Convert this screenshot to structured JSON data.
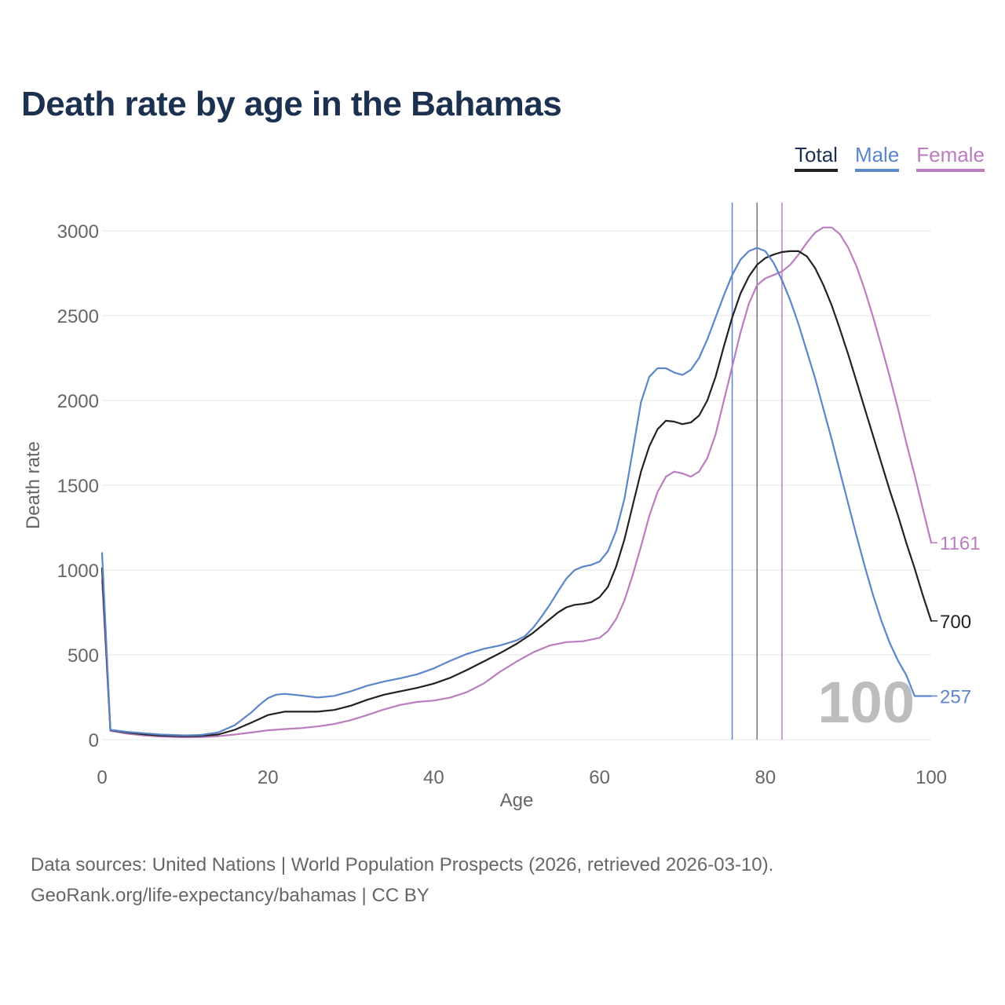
{
  "title": "Death rate by age in the Bahamas",
  "legend": [
    {
      "label": "Total",
      "color": "#222222"
    },
    {
      "label": "Male",
      "color": "#5b86c9"
    },
    {
      "label": "Female",
      "color": "#bb7dbf"
    }
  ],
  "footer": {
    "source": "Data sources: United Nations | World Population Prospects (2026, retrieved 2026-03-10).",
    "link": "GeoRank.org/life-expectancy/bahamas | CC BY"
  },
  "chart_data": {
    "type": "line",
    "xlabel": "Age",
    "ylabel": "Death rate",
    "xlim": [
      0,
      100
    ],
    "ylim": [
      0,
      3000
    ],
    "xticks": [
      "0",
      "20",
      "40",
      "60",
      "80",
      "100"
    ],
    "yticks": [
      "0",
      "500",
      "1000",
      "1500",
      "2000",
      "2500",
      "3000"
    ],
    "watermark": "100",
    "life_expectancy_lines": [
      {
        "series": "Male",
        "age": 76,
        "color": "#5b86c9"
      },
      {
        "series": "Total",
        "age": 79,
        "color": "#777777"
      },
      {
        "series": "Female",
        "age": 82,
        "color": "#bb7dbf"
      }
    ],
    "end_labels": [
      {
        "series": "Female",
        "value": "1161",
        "color": "#bb7dbf"
      },
      {
        "series": "Total",
        "value": "700",
        "color": "#222222"
      },
      {
        "series": "Male",
        "value": "257",
        "color": "#5b86c9"
      }
    ],
    "series": [
      {
        "name": "Female",
        "color": "#bb7dbf",
        "points": [
          [
            0,
            940
          ],
          [
            1,
            52
          ],
          [
            3,
            35
          ],
          [
            5,
            25
          ],
          [
            7,
            18
          ],
          [
            10,
            14
          ],
          [
            12,
            15
          ],
          [
            14,
            20
          ],
          [
            16,
            30
          ],
          [
            18,
            42
          ],
          [
            20,
            55
          ],
          [
            22,
            62
          ],
          [
            24,
            68
          ],
          [
            26,
            78
          ],
          [
            28,
            92
          ],
          [
            30,
            115
          ],
          [
            32,
            145
          ],
          [
            34,
            178
          ],
          [
            36,
            205
          ],
          [
            38,
            222
          ],
          [
            40,
            230
          ],
          [
            42,
            248
          ],
          [
            44,
            280
          ],
          [
            46,
            330
          ],
          [
            48,
            400
          ],
          [
            50,
            460
          ],
          [
            52,
            515
          ],
          [
            54,
            555
          ],
          [
            56,
            575
          ],
          [
            58,
            580
          ],
          [
            60,
            600
          ],
          [
            61,
            640
          ],
          [
            62,
            710
          ],
          [
            63,
            820
          ],
          [
            64,
            970
          ],
          [
            65,
            1140
          ],
          [
            66,
            1320
          ],
          [
            67,
            1460
          ],
          [
            68,
            1550
          ],
          [
            69,
            1580
          ],
          [
            70,
            1570
          ],
          [
            71,
            1550
          ],
          [
            72,
            1580
          ],
          [
            73,
            1660
          ],
          [
            74,
            1800
          ],
          [
            75,
            2000
          ],
          [
            76,
            2200
          ],
          [
            77,
            2400
          ],
          [
            78,
            2570
          ],
          [
            79,
            2680
          ],
          [
            80,
            2720
          ],
          [
            81,
            2740
          ],
          [
            82,
            2760
          ],
          [
            83,
            2800
          ],
          [
            84,
            2860
          ],
          [
            85,
            2930
          ],
          [
            86,
            2990
          ],
          [
            87,
            3020
          ],
          [
            88,
            3020
          ],
          [
            89,
            2980
          ],
          [
            90,
            2900
          ],
          [
            91,
            2790
          ],
          [
            92,
            2650
          ],
          [
            93,
            2490
          ],
          [
            94,
            2320
          ],
          [
            95,
            2140
          ],
          [
            96,
            1950
          ],
          [
            97,
            1750
          ],
          [
            98,
            1560
          ],
          [
            99,
            1360
          ],
          [
            100,
            1161
          ]
        ]
      },
      {
        "name": "Total",
        "color": "#222222",
        "points": [
          [
            0,
            1010
          ],
          [
            1,
            56
          ],
          [
            3,
            42
          ],
          [
            5,
            32
          ],
          [
            7,
            24
          ],
          [
            10,
            20
          ],
          [
            12,
            22
          ],
          [
            14,
            30
          ],
          [
            16,
            58
          ],
          [
            18,
            100
          ],
          [
            19,
            122
          ],
          [
            20,
            145
          ],
          [
            22,
            165
          ],
          [
            24,
            165
          ],
          [
            26,
            165
          ],
          [
            28,
            175
          ],
          [
            30,
            200
          ],
          [
            32,
            235
          ],
          [
            34,
            265
          ],
          [
            36,
            285
          ],
          [
            38,
            305
          ],
          [
            40,
            330
          ],
          [
            42,
            365
          ],
          [
            44,
            410
          ],
          [
            46,
            460
          ],
          [
            48,
            510
          ],
          [
            50,
            565
          ],
          [
            52,
            630
          ],
          [
            54,
            710
          ],
          [
            55,
            750
          ],
          [
            56,
            780
          ],
          [
            57,
            795
          ],
          [
            58,
            800
          ],
          [
            59,
            810
          ],
          [
            60,
            840
          ],
          [
            61,
            900
          ],
          [
            62,
            1020
          ],
          [
            63,
            1180
          ],
          [
            64,
            1380
          ],
          [
            65,
            1580
          ],
          [
            66,
            1730
          ],
          [
            67,
            1830
          ],
          [
            68,
            1880
          ],
          [
            69,
            1875
          ],
          [
            70,
            1860
          ],
          [
            71,
            1870
          ],
          [
            72,
            1910
          ],
          [
            73,
            2000
          ],
          [
            74,
            2140
          ],
          [
            75,
            2320
          ],
          [
            76,
            2490
          ],
          [
            77,
            2630
          ],
          [
            78,
            2730
          ],
          [
            79,
            2800
          ],
          [
            80,
            2840
          ],
          [
            81,
            2860
          ],
          [
            82,
            2875
          ],
          [
            83,
            2880
          ],
          [
            84,
            2880
          ],
          [
            85,
            2850
          ],
          [
            86,
            2780
          ],
          [
            87,
            2680
          ],
          [
            88,
            2560
          ],
          [
            89,
            2420
          ],
          [
            90,
            2270
          ],
          [
            91,
            2110
          ],
          [
            92,
            1950
          ],
          [
            93,
            1790
          ],
          [
            94,
            1630
          ],
          [
            95,
            1470
          ],
          [
            96,
            1320
          ],
          [
            97,
            1160
          ],
          [
            98,
            1010
          ],
          [
            99,
            850
          ],
          [
            100,
            700
          ]
        ]
      },
      {
        "name": "Male",
        "color": "#5b86c9",
        "points": [
          [
            0,
            1100
          ],
          [
            1,
            58
          ],
          [
            3,
            46
          ],
          [
            5,
            38
          ],
          [
            7,
            30
          ],
          [
            10,
            25
          ],
          [
            12,
            28
          ],
          [
            14,
            42
          ],
          [
            16,
            85
          ],
          [
            18,
            160
          ],
          [
            19,
            205
          ],
          [
            20,
            245
          ],
          [
            21,
            265
          ],
          [
            22,
            270
          ],
          [
            24,
            260
          ],
          [
            26,
            248
          ],
          [
            28,
            258
          ],
          [
            30,
            285
          ],
          [
            32,
            318
          ],
          [
            34,
            342
          ],
          [
            36,
            362
          ],
          [
            38,
            385
          ],
          [
            40,
            420
          ],
          [
            42,
            465
          ],
          [
            44,
            505
          ],
          [
            46,
            535
          ],
          [
            48,
            555
          ],
          [
            50,
            585
          ],
          [
            51,
            610
          ],
          [
            52,
            660
          ],
          [
            53,
            725
          ],
          [
            54,
            795
          ],
          [
            55,
            875
          ],
          [
            56,
            950
          ],
          [
            57,
            1000
          ],
          [
            58,
            1020
          ],
          [
            59,
            1030
          ],
          [
            60,
            1050
          ],
          [
            61,
            1110
          ],
          [
            62,
            1230
          ],
          [
            63,
            1420
          ],
          [
            64,
            1700
          ],
          [
            65,
            1990
          ],
          [
            66,
            2140
          ],
          [
            67,
            2190
          ],
          [
            68,
            2190
          ],
          [
            69,
            2165
          ],
          [
            70,
            2150
          ],
          [
            71,
            2180
          ],
          [
            72,
            2250
          ],
          [
            73,
            2360
          ],
          [
            74,
            2490
          ],
          [
            75,
            2620
          ],
          [
            76,
            2740
          ],
          [
            77,
            2830
          ],
          [
            78,
            2880
          ],
          [
            79,
            2900
          ],
          [
            80,
            2880
          ],
          [
            81,
            2810
          ],
          [
            82,
            2710
          ],
          [
            83,
            2590
          ],
          [
            84,
            2450
          ],
          [
            85,
            2290
          ],
          [
            86,
            2130
          ],
          [
            87,
            1950
          ],
          [
            88,
            1770
          ],
          [
            89,
            1580
          ],
          [
            90,
            1390
          ],
          [
            91,
            1200
          ],
          [
            92,
            1020
          ],
          [
            93,
            850
          ],
          [
            94,
            700
          ],
          [
            95,
            570
          ],
          [
            96,
            465
          ],
          [
            97,
            380
          ],
          [
            98,
            257
          ],
          [
            99,
            257
          ],
          [
            100,
            257
          ]
        ]
      }
    ]
  }
}
